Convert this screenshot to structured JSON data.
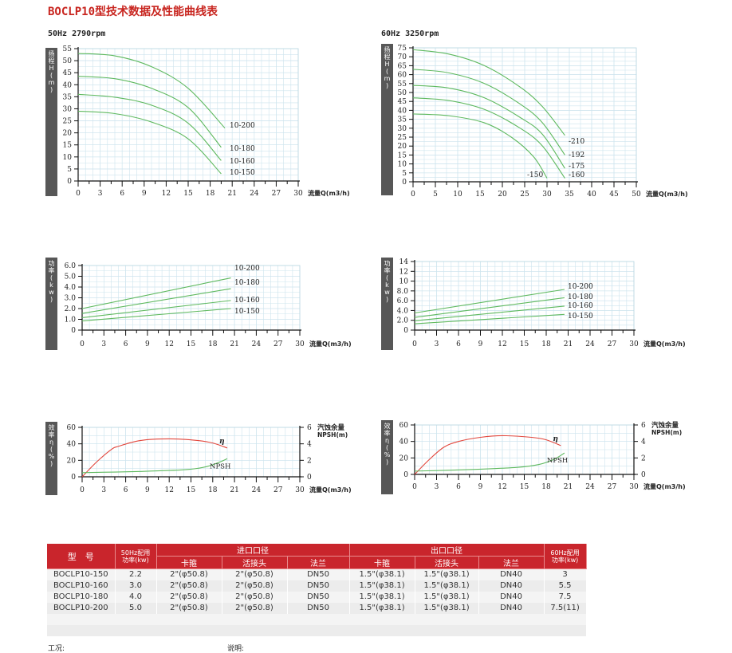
{
  "page_title": "BOCLP10型技术数据及性能曲线表",
  "colors": {
    "curve_green": "#5fb95f",
    "eff_red": "#e2463c",
    "axis_band": "#575757",
    "grid": "#cde4ee",
    "title_red": "#c8251f",
    "header_red": "#c9252c"
  },
  "chart_data": [
    {
      "id": "head50",
      "type": "line",
      "title": "50Hz  2790rpm",
      "ylabel": "扬程H(m)",
      "xlabel": "流量Q(m3/h)",
      "xlim": [
        0,
        30
      ],
      "ylim": [
        0,
        55
      ],
      "xticks": [
        "0",
        "3",
        "6",
        "9",
        "12",
        "15",
        "18",
        "21",
        "24",
        "27",
        "30"
      ],
      "yticks": [
        "0",
        "5",
        "10",
        "15",
        "20",
        "25",
        "30",
        "35",
        "40",
        "45",
        "50",
        "55"
      ],
      "series": [
        {
          "name": "10-200",
          "points": [
            [
              0,
              53
            ],
            [
              5,
              52
            ],
            [
              10,
              47.5
            ],
            [
              15,
              38.5
            ],
            [
              20,
              22
            ]
          ]
        },
        {
          "name": "10-180",
          "points": [
            [
              0,
              43.5
            ],
            [
              5,
              42.5
            ],
            [
              10,
              38.5
            ],
            [
              15,
              30.5
            ],
            [
              19.5,
              14
            ]
          ]
        },
        {
          "name": "10-160",
          "points": [
            [
              0,
              36
            ],
            [
              5,
              34.8
            ],
            [
              10,
              31.5
            ],
            [
              15,
              24
            ],
            [
              19.5,
              8.5
            ]
          ]
        },
        {
          "name": "10-150",
          "points": [
            [
              0,
              29
            ],
            [
              5,
              28
            ],
            [
              10,
              24.5
            ],
            [
              15,
              17.5
            ],
            [
              19.5,
              3
            ]
          ]
        }
      ],
      "label_positions": [
        "10-200",
        "10-180",
        "10-160",
        "10-150"
      ]
    },
    {
      "id": "head60",
      "type": "line",
      "title": "60Hz  3250rpm",
      "ylabel": "扬程H(m)",
      "xlabel": "流量Q(m3/h)",
      "xlim": [
        0,
        50
      ],
      "ylim": [
        0,
        75
      ],
      "xticks": [
        "0",
        "5",
        "10",
        "15",
        "20",
        "25",
        "30",
        "35",
        "40",
        "45",
        "50"
      ],
      "yticks": [
        "0",
        "5",
        "10",
        "15",
        "20",
        "25",
        "30",
        "35",
        "40",
        "45",
        "50",
        "55",
        "60",
        "65",
        "70",
        "75"
      ],
      "series": [
        {
          "name": "-210",
          "points": [
            [
              0,
              74
            ],
            [
              8,
              71.5
            ],
            [
              16,
              65
            ],
            [
              24,
              53
            ],
            [
              29,
              42
            ],
            [
              34,
              26
            ]
          ]
        },
        {
          "name": "-192",
          "points": [
            [
              0,
              63
            ],
            [
              8,
              61
            ],
            [
              16,
              55
            ],
            [
              24,
              43.5
            ],
            [
              29,
              33
            ],
            [
              34,
              15
            ]
          ]
        },
        {
          "name": "-175",
          "points": [
            [
              0,
              54
            ],
            [
              8,
              52.5
            ],
            [
              16,
              47
            ],
            [
              24,
              36
            ],
            [
              29,
              26.5
            ],
            [
              34,
              7.5
            ]
          ]
        },
        {
          "name": "-160",
          "points": [
            [
              0,
              47
            ],
            [
              8,
              45.5
            ],
            [
              16,
              40.5
            ],
            [
              24,
              30
            ],
            [
              29,
              20
            ],
            [
              34,
              2
            ]
          ]
        },
        {
          "name": "-150",
          "points": [
            [
              0,
              38
            ],
            [
              8,
              37
            ],
            [
              16,
              33
            ],
            [
              22,
              25
            ],
            [
              27,
              14
            ],
            [
              30,
              2
            ]
          ]
        }
      ]
    },
    {
      "id": "power50",
      "type": "line",
      "ylabel": "功率(kw)",
      "xlabel": "流量Q(m3/h)",
      "xlim": [
        0,
        30
      ],
      "ylim": [
        0,
        6
      ],
      "xticks": [
        "0",
        "3",
        "6",
        "9",
        "12",
        "15",
        "18",
        "21",
        "24",
        "27",
        "30"
      ],
      "yticks": [
        "0",
        "1.0",
        "2.0",
        "3.0",
        "4.0",
        "5.0",
        "6.0"
      ],
      "series": [
        {
          "name": "10-200",
          "points": [
            [
              0,
              2
            ],
            [
              20.5,
              4.85
            ]
          ]
        },
        {
          "name": "10-180",
          "points": [
            [
              0,
              1.55
            ],
            [
              20.5,
              3.85
            ]
          ]
        },
        {
          "name": "10-160",
          "points": [
            [
              0,
              1.15
            ],
            [
              20.5,
              2.75
            ]
          ]
        },
        {
          "name": "10-150",
          "points": [
            [
              0,
              0.85
            ],
            [
              20.5,
              2.0
            ]
          ]
        }
      ]
    },
    {
      "id": "power60",
      "type": "line",
      "ylabel": "功率(kw)",
      "xlabel": "流量Q(m3/h)",
      "xlim": [
        0,
        30
      ],
      "ylim": [
        0,
        14
      ],
      "xticks": [
        "0",
        "3",
        "6",
        "9",
        "12",
        "15",
        "18",
        "21",
        "24",
        "27",
        "30"
      ],
      "yticks": [
        "0",
        "2.0",
        "4.0",
        "6.0",
        "8.0",
        "10",
        "12",
        "14"
      ],
      "series": [
        {
          "name": "10-200",
          "points": [
            [
              0,
              3.5
            ],
            [
              20.5,
              8.3
            ]
          ]
        },
        {
          "name": "10-180",
          "points": [
            [
              0,
              2.6
            ],
            [
              20.5,
              6.6
            ]
          ]
        },
        {
          "name": "10-160",
          "points": [
            [
              0,
              1.9
            ],
            [
              20.5,
              4.9
            ]
          ]
        },
        {
          "name": "10-150",
          "points": [
            [
              0,
              1.3
            ],
            [
              20.5,
              3.2
            ]
          ]
        }
      ]
    },
    {
      "id": "eff50",
      "type": "line",
      "ylabel": "效率η(%)",
      "y2label": "汽蚀余量\nNPSH(m)",
      "xlabel": "流量Q(m3/h)",
      "xlim": [
        0,
        30
      ],
      "ylim": [
        0,
        60
      ],
      "y2lim": [
        0,
        6
      ],
      "xticks": [
        "0",
        "3",
        "6",
        "9",
        "12",
        "15",
        "18",
        "21",
        "24",
        "27",
        "30"
      ],
      "yticks": [
        "0",
        "20",
        "40",
        "60"
      ],
      "y2ticks": [
        "0",
        "2",
        "4",
        "6"
      ],
      "series": [
        {
          "name": "η",
          "axis": "left",
          "points": [
            [
              0,
              0
            ],
            [
              2,
              18
            ],
            [
              4,
              33
            ],
            [
              5,
              37
            ],
            [
              8,
              44
            ],
            [
              12,
              46
            ],
            [
              16,
              44
            ],
            [
              18,
              41
            ],
            [
              20,
              35
            ]
          ]
        },
        {
          "name": "NPSH",
          "axis": "right",
          "points": [
            [
              0,
              0.5
            ],
            [
              8,
              0.65
            ],
            [
              14,
              0.85
            ],
            [
              17,
              1.2
            ],
            [
              19,
              1.8
            ],
            [
              20,
              2.2
            ]
          ]
        }
      ]
    },
    {
      "id": "eff60",
      "type": "line",
      "ylabel": "效率η(%)",
      "y2label": "汽蚀余量\nNPSH(m)",
      "xlabel": "流量Q(m3/h)",
      "xlim": [
        0,
        30
      ],
      "ylim": [
        0,
        60
      ],
      "y2lim": [
        0,
        6
      ],
      "xticks": [
        "0",
        "3",
        "6",
        "9",
        "12",
        "15",
        "18",
        "21",
        "24",
        "27",
        "30"
      ],
      "yticks": [
        "0",
        "20",
        "40",
        "60"
      ],
      "y2ticks": [
        "0",
        "2",
        "4",
        "6"
      ],
      "series": [
        {
          "name": "η",
          "axis": "left",
          "points": [
            [
              0,
              0
            ],
            [
              2,
              18
            ],
            [
              4,
              33
            ],
            [
              6,
              40
            ],
            [
              9,
              45
            ],
            [
              12,
              47
            ],
            [
              16,
              45
            ],
            [
              18,
              42
            ],
            [
              20,
              35
            ]
          ]
        },
        {
          "name": "NPSH",
          "axis": "right",
          "points": [
            [
              0,
              0.4
            ],
            [
              8,
              0.6
            ],
            [
              14,
              0.85
            ],
            [
              17,
              1.2
            ],
            [
              19,
              1.8
            ],
            [
              20.5,
              2.6
            ]
          ]
        }
      ]
    }
  ],
  "table": {
    "headers": {
      "model": "型　号",
      "power50": "50Hz配用\n功率(kw)",
      "inlet": "进口口径",
      "outlet": "出口口径",
      "power60": "60Hz配用\n功率(kw)",
      "clamp": "卡箍",
      "union": "活接头",
      "flange": "法兰"
    },
    "rows": [
      [
        "BOCLP10-150",
        "2.2",
        "2\"(φ50.8)",
        "2\"(φ50.8)",
        "DN50",
        "1.5\"(φ38.1)",
        "1.5\"(φ38.1)",
        "DN40",
        "3"
      ],
      [
        "BOCLP10-160",
        "3.0",
        "2\"(φ50.8)",
        "2\"(φ50.8)",
        "DN50",
        "1.5\"(φ38.1)",
        "1.5\"(φ38.1)",
        "DN40",
        "5.5"
      ],
      [
        "BOCLP10-180",
        "4.0",
        "2\"(φ50.8)",
        "2\"(φ50.8)",
        "DN50",
        "1.5\"(φ38.1)",
        "1.5\"(φ38.1)",
        "DN40",
        "7.5"
      ],
      [
        "BOCLP10-200",
        "5.0",
        "2\"(φ50.8)",
        "2\"(φ50.8)",
        "DN50",
        "1.5\"(φ38.1)",
        "1.5\"(φ38.1)",
        "DN40",
        "7.5(11)"
      ]
    ]
  },
  "footer": {
    "work_condition": "工况:",
    "note": "说明:"
  }
}
